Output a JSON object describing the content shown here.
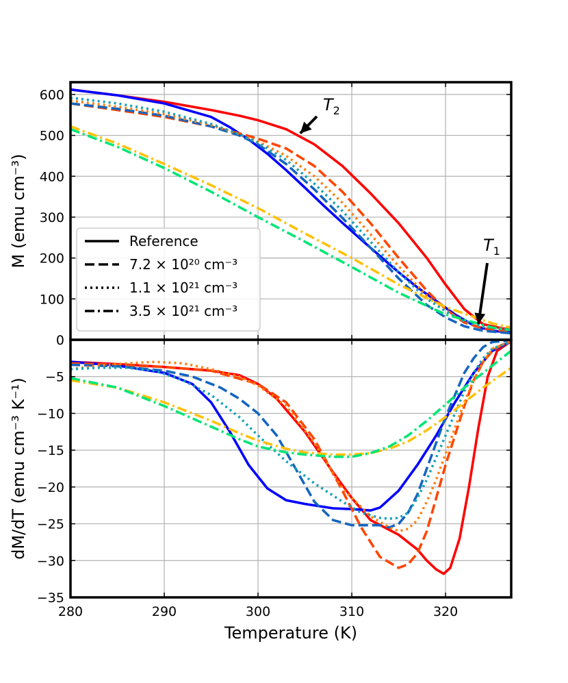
{
  "chart_data": [
    {
      "type": "line",
      "panel": "top",
      "xlabel": "",
      "ylabel": "M (emu cm⁻³)",
      "xlim": [
        280,
        327
      ],
      "ylim": [
        0,
        630
      ],
      "yticks": [
        0,
        100,
        200,
        300,
        400,
        500,
        600
      ],
      "grid": true,
      "legend": {
        "placement": "lower-left",
        "entries": [
          {
            "label": "Reference",
            "style": "solid"
          },
          {
            "label": "7.2 × 10²⁰ cm⁻³",
            "style": "dashed"
          },
          {
            "label": "1.1 × 10²¹ cm⁻³",
            "style": "dotted"
          },
          {
            "label": "3.5 × 10²¹ cm⁻³",
            "style": "dashdot"
          }
        ]
      },
      "annotations": [
        {
          "text": "T",
          "sub": "2",
          "at": [
            304.5,
            505
          ]
        },
        {
          "text": "T",
          "sub": "1",
          "at": [
            323.5,
            38
          ]
        }
      ],
      "series": [
        {
          "style": "solid",
          "color": "#ff0000",
          "x": [
            280,
            285,
            290,
            295,
            298,
            300,
            303,
            306,
            309,
            312,
            315,
            318,
            320,
            322,
            324,
            326,
            327
          ],
          "y": [
            612,
            598,
            582,
            562,
            548,
            537,
            515,
            478,
            425,
            358,
            285,
            200,
            135,
            75,
            38,
            28,
            25
          ]
        },
        {
          "style": "solid",
          "color": "#0000ff",
          "x": [
            280,
            285,
            290,
            295,
            297,
            299,
            301,
            303,
            305,
            307,
            309,
            311,
            313,
            315,
            317,
            319,
            321,
            323,
            325,
            327
          ],
          "y": [
            612,
            598,
            578,
            545,
            520,
            490,
            455,
            415,
            372,
            328,
            286,
            245,
            205,
            165,
            128,
            95,
            62,
            35,
            22,
            18
          ]
        },
        {
          "style": "dashed",
          "color": "#ff4500",
          "x": [
            280,
            285,
            290,
            295,
            298,
            300,
            303,
            306,
            309,
            312,
            315,
            318,
            320,
            322,
            324,
            326,
            327
          ],
          "y": [
            578,
            562,
            545,
            522,
            505,
            492,
            468,
            425,
            362,
            285,
            200,
            120,
            75,
            42,
            28,
            22,
            20
          ]
        },
        {
          "style": "dashed",
          "color": "#1565c0",
          "x": [
            280,
            285,
            290,
            295,
            298,
            300,
            303,
            306,
            309,
            312,
            315,
            318,
            320,
            322,
            324,
            326,
            327
          ],
          "y": [
            578,
            565,
            548,
            522,
            500,
            478,
            430,
            368,
            298,
            225,
            150,
            85,
            55,
            33,
            22,
            18,
            16
          ]
        },
        {
          "style": "dotted",
          "color": "#ff7f0e",
          "x": [
            280,
            285,
            290,
            295,
            298,
            300,
            303,
            306,
            309,
            312,
            315,
            318,
            320,
            322,
            324,
            326,
            327
          ],
          "y": [
            585,
            570,
            552,
            525,
            503,
            485,
            450,
            400,
            335,
            258,
            180,
            108,
            72,
            45,
            32,
            26,
            24
          ]
        },
        {
          "style": "dotted",
          "color": "#17a2b8",
          "x": [
            280,
            285,
            290,
            295,
            298,
            300,
            303,
            306,
            309,
            312,
            315,
            318,
            320,
            322,
            324,
            326,
            327
          ],
          "y": [
            592,
            578,
            558,
            528,
            503,
            482,
            440,
            382,
            315,
            240,
            165,
            100,
            70,
            45,
            32,
            26,
            24
          ]
        },
        {
          "style": "dashdot",
          "color": "#ffc107",
          "x": [
            280,
            285,
            290,
            295,
            300,
            305,
            310,
            315,
            320,
            325,
            327
          ],
          "y": [
            522,
            480,
            430,
            378,
            322,
            260,
            200,
            135,
            80,
            40,
            30
          ]
        },
        {
          "style": "dashdot",
          "color": "#00e676",
          "x": [
            280,
            285,
            290,
            295,
            300,
            305,
            310,
            315,
            320,
            325,
            327
          ],
          "y": [
            515,
            472,
            420,
            362,
            300,
            240,
            178,
            115,
            62,
            30,
            24
          ]
        }
      ]
    },
    {
      "type": "line",
      "panel": "bottom",
      "xlabel": "Temperature (K)",
      "ylabel": "dM/dT (emu cm⁻³ K⁻¹)",
      "xlim": [
        280,
        327
      ],
      "ylim": [
        -35,
        0
      ],
      "xticks": [
        280,
        290,
        300,
        310,
        320
      ],
      "yticks": [
        -35,
        -30,
        -25,
        -20,
        -15,
        -10,
        -5
      ],
      "grid": true,
      "series": [
        {
          "style": "solid",
          "color": "#ff0000",
          "x": [
            280,
            285,
            290,
            295,
            298,
            300,
            302,
            305,
            308,
            310,
            312,
            315,
            317,
            318,
            319,
            319.8,
            320.5,
            321.5,
            322.5,
            323.5,
            324.5,
            325.5,
            327
          ],
          "y": [
            -3,
            -3.3,
            -3.7,
            -4.2,
            -4.8,
            -6,
            -8,
            -12.5,
            -18,
            -21.5,
            -24.5,
            -26.5,
            -28.5,
            -30,
            -31.2,
            -31.8,
            -31,
            -27,
            -20,
            -12,
            -5,
            -1.5,
            -0.2
          ]
        },
        {
          "style": "solid",
          "color": "#0000ff",
          "x": [
            280,
            285,
            290,
            293,
            295,
            297,
            299,
            301,
            303,
            305,
            308,
            310,
            312,
            313,
            315,
            317,
            319,
            321,
            323,
            325,
            327
          ],
          "y": [
            -3,
            -3.5,
            -4.5,
            -6,
            -8.5,
            -12.5,
            -17,
            -20.2,
            -21.8,
            -22.3,
            -22.9,
            -23,
            -23.2,
            -22.8,
            -20.5,
            -17,
            -13,
            -8.5,
            -4.5,
            -1.5,
            -0.2
          ]
        },
        {
          "style": "dashed",
          "color": "#ff4500",
          "x": [
            280,
            285,
            290,
            295,
            300,
            303,
            306,
            309,
            311,
            313,
            315,
            316,
            317,
            318,
            319,
            320,
            321,
            322,
            323,
            324,
            325,
            326,
            327
          ],
          "y": [
            -3.2,
            -3.4,
            -3.7,
            -4.2,
            -6,
            -8.5,
            -13.5,
            -20.5,
            -25.5,
            -29.5,
            -31,
            -30.5,
            -29,
            -26,
            -21.5,
            -17,
            -13,
            -9,
            -5.5,
            -3,
            -1.5,
            -0.7,
            -0.2
          ]
        },
        {
          "style": "dashed",
          "color": "#1565c0",
          "x": [
            280,
            285,
            290,
            293,
            296,
            298,
            300,
            302,
            304,
            306,
            308,
            310,
            312,
            313,
            314,
            315,
            316,
            317,
            318,
            319,
            320,
            321,
            322,
            323,
            324,
            325,
            327
          ],
          "y": [
            -3.4,
            -3.6,
            -4.2,
            -5,
            -6.5,
            -8,
            -10,
            -13,
            -17.5,
            -22,
            -24.5,
            -25.2,
            -25.2,
            -25.2,
            -25.5,
            -25,
            -23.5,
            -21,
            -17.5,
            -14,
            -10.5,
            -7.5,
            -4.5,
            -2.5,
            -1,
            -0.3,
            -0.1
          ]
        },
        {
          "style": "dotted",
          "color": "#ff7f0e",
          "x": [
            280,
            283,
            286,
            289,
            292,
            295,
            298,
            300,
            303,
            306,
            309,
            312,
            314,
            315,
            316,
            317,
            318,
            319,
            320,
            321,
            322,
            323,
            324,
            325,
            327
          ],
          "y": [
            -4,
            -3.5,
            -3.2,
            -3,
            -3.2,
            -4,
            -5,
            -6.2,
            -9,
            -14,
            -20.2,
            -24,
            -25.5,
            -26,
            -25.7,
            -24.5,
            -22,
            -19,
            -15.5,
            -12,
            -8.5,
            -5.5,
            -3,
            -1.2,
            -0.2
          ]
        },
        {
          "style": "dotted",
          "color": "#17a2b8",
          "x": [
            280,
            283,
            286,
            289,
            292,
            295,
            298,
            300,
            303,
            306,
            309,
            311,
            313,
            314,
            315,
            316,
            317,
            318,
            319,
            320,
            321,
            322,
            323,
            324,
            325,
            327
          ],
          "y": [
            -4,
            -3.8,
            -3.8,
            -4.2,
            -5.5,
            -7.5,
            -10.5,
            -13,
            -16.5,
            -19.5,
            -22,
            -23.5,
            -24.2,
            -24.3,
            -24.2,
            -23.5,
            -21.5,
            -19,
            -16,
            -13,
            -10,
            -7,
            -4.5,
            -2.5,
            -1.2,
            -0.3
          ]
        },
        {
          "style": "dashdot",
          "color": "#ffc107",
          "x": [
            280,
            285,
            290,
            295,
            298,
            300,
            303,
            305,
            308,
            310,
            312,
            314,
            316,
            318,
            320,
            322,
            324,
            327
          ],
          "y": [
            -5.5,
            -6.5,
            -8.5,
            -11,
            -12.7,
            -13.7,
            -14.8,
            -15.3,
            -15.6,
            -15.6,
            -15.4,
            -14.8,
            -13.8,
            -12.3,
            -10.5,
            -8.5,
            -6.5,
            -3.8
          ]
        },
        {
          "style": "dashdot",
          "color": "#00e676",
          "x": [
            280,
            285,
            290,
            295,
            298,
            300,
            303,
            305,
            308,
            310,
            312,
            314,
            316,
            318,
            320,
            322,
            324,
            327
          ],
          "y": [
            -5.2,
            -6.5,
            -9,
            -11.8,
            -13.5,
            -14.5,
            -15.3,
            -15.6,
            -15.9,
            -15.9,
            -15.4,
            -14.5,
            -13,
            -11,
            -8.8,
            -6.5,
            -4.5,
            -1.5
          ]
        }
      ]
    }
  ]
}
